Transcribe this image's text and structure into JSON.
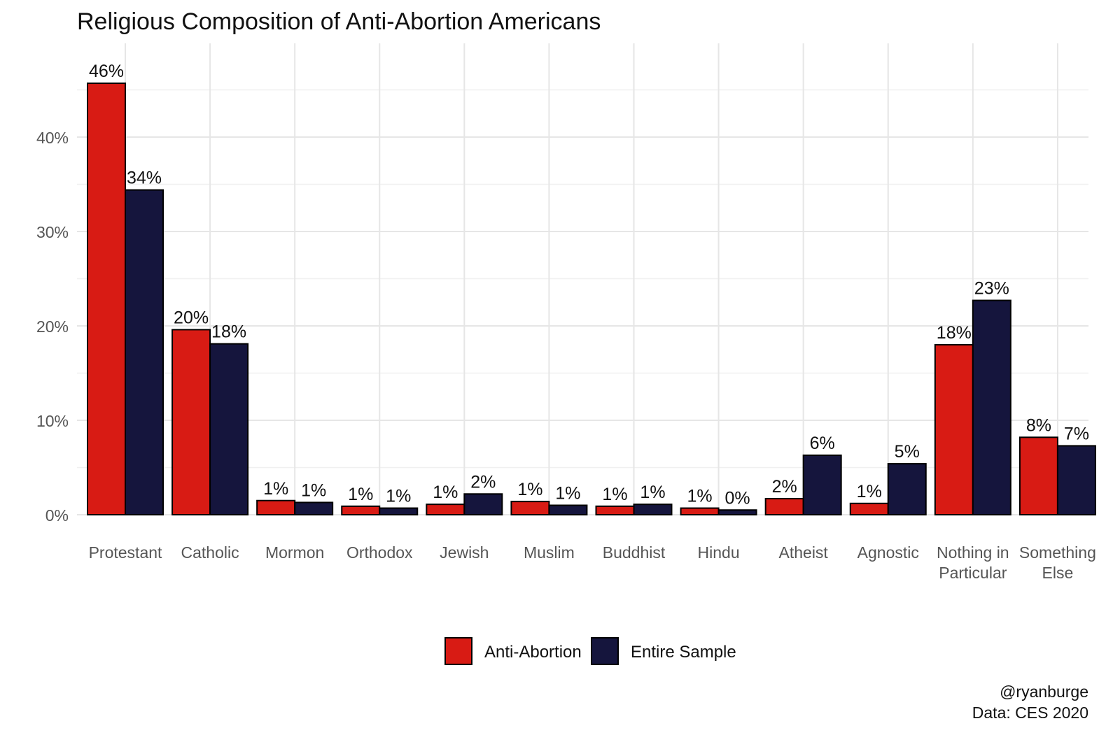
{
  "chart_data": {
    "type": "bar",
    "title": "Religious Composition of Anti-Abortion Americans",
    "xlabel": "",
    "ylabel": "",
    "ylim": [
      0,
      48
    ],
    "yticks": [
      0,
      10,
      20,
      30,
      40
    ],
    "ytick_labels": [
      "0%",
      "10%",
      "20%",
      "30%",
      "40%"
    ],
    "grid": true,
    "legend_position": "bottom",
    "categories": [
      [
        "Protestant"
      ],
      [
        "Catholic"
      ],
      [
        "Mormon"
      ],
      [
        "Orthodox"
      ],
      [
        "Jewish"
      ],
      [
        "Muslim"
      ],
      [
        "Buddhist"
      ],
      [
        "Hindu"
      ],
      [
        "Atheist"
      ],
      [
        "Agnostic"
      ],
      [
        "Nothing in",
        "Particular"
      ],
      [
        "Something",
        "Else"
      ]
    ],
    "series": [
      {
        "name": "Anti-Abortion",
        "color": "#d81b14",
        "values": [
          45.7,
          19.6,
          1.5,
          0.9,
          1.1,
          1.4,
          0.9,
          0.7,
          1.7,
          1.2,
          18.0,
          8.2
        ],
        "labels": [
          "46%",
          "20%",
          "1%",
          "1%",
          "1%",
          "1%",
          "1%",
          "1%",
          "2%",
          "1%",
          "18%",
          "8%"
        ]
      },
      {
        "name": "Entire Sample",
        "color": "#15153d",
        "values": [
          34.4,
          18.1,
          1.3,
          0.7,
          2.2,
          1.0,
          1.1,
          0.5,
          6.3,
          5.4,
          22.7,
          7.3
        ],
        "labels": [
          "34%",
          "18%",
          "1%",
          "1%",
          "2%",
          "1%",
          "1%",
          "0%",
          "6%",
          "5%",
          "23%",
          "7%"
        ]
      }
    ],
    "caption": [
      "@ryanburge",
      "Data: CES 2020"
    ]
  }
}
